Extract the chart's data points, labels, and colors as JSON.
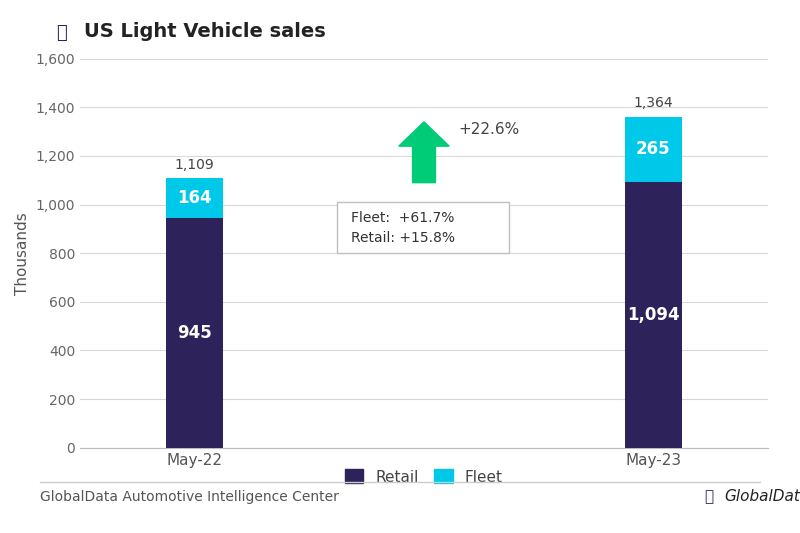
{
  "categories": [
    "May-22",
    "May-23"
  ],
  "retail_values": [
    945,
    1094
  ],
  "fleet_values": [
    164,
    265
  ],
  "totals": [
    1109,
    1364
  ],
  "retail_color": "#2d2259",
  "fleet_color": "#00c8e8",
  "bar_width": 0.25,
  "title": "US Light Vehicle sales",
  "ylabel": "Thousands",
  "ylim": [
    0,
    1600
  ],
  "yticks": [
    0,
    200,
    400,
    600,
    800,
    1000,
    1200,
    1400,
    1600
  ],
  "arrow_color": "#00cc77",
  "arrow_text": "+22.6%",
  "box_text_fleet": "Fleet:  +61.7%",
  "box_text_retail": "Retail: +15.8%",
  "footer_left": "GlobalData Automotive Intelligence Center",
  "background_color": "#ffffff",
  "grid_color": "#d8d8d8"
}
